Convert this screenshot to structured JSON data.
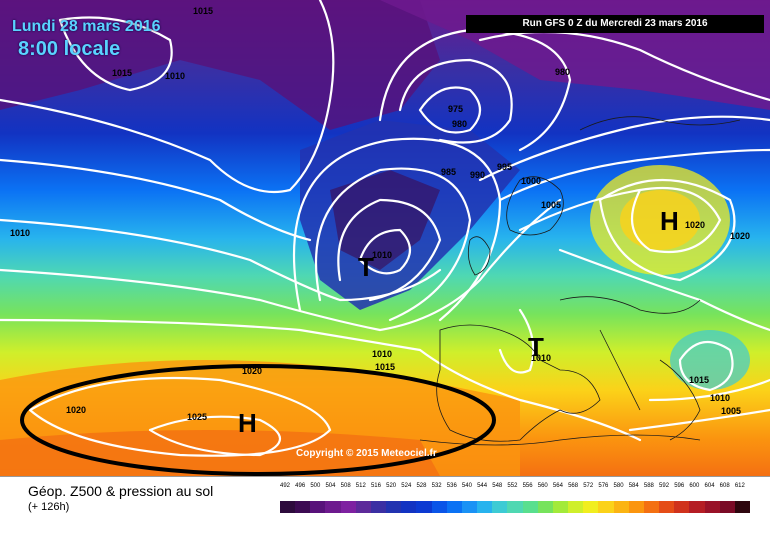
{
  "header": {
    "date_text": "Lundi 28 mars 2016",
    "time_text": "8:00 locale",
    "run_text": "Run GFS 0 Z du Mercredi 23 mars 2016"
  },
  "footer": {
    "title": "Géop. Z500 & pression au sol",
    "subtitle": "(+ 126h)"
  },
  "copyright": "Copyright © 2015 Meteociel.fr",
  "pressure_labels": [
    "1015",
    "1015",
    "1010",
    "980",
    "975",
    "980",
    "985",
    "990",
    "995",
    "1000",
    "1005",
    "1010",
    "1020",
    "1020",
    "1010",
    "1015",
    "1020",
    "1025",
    "1020",
    "1010",
    "1010",
    "1015",
    "1005",
    "1010"
  ],
  "centers": {
    "high_west": "H",
    "high_east": "H",
    "low_north": "T",
    "low_iberia": "T"
  },
  "legend": {
    "ticks": [
      "492",
      "496",
      "500",
      "504",
      "508",
      "512",
      "516",
      "520",
      "524",
      "528",
      "532",
      "536",
      "540",
      "544",
      "548",
      "552",
      "556",
      "560",
      "564",
      "568",
      "572",
      "576",
      "580",
      "584",
      "588",
      "592",
      "596",
      "600",
      "604",
      "608",
      "612"
    ],
    "colors": [
      "#2d0a3c",
      "#3c0a52",
      "#58127a",
      "#6d1a8e",
      "#7e21a1",
      "#5d2a9a",
      "#3b2fa3",
      "#2233b0",
      "#1233c2",
      "#0c3ad2",
      "#0a55e8",
      "#0b72f4",
      "#1a92f5",
      "#27b3ee",
      "#3dcbd4",
      "#4fd8b2",
      "#59df8e",
      "#77e35c",
      "#a3ea3a",
      "#cfef2b",
      "#f1ee1f",
      "#fbd219",
      "#fbb413",
      "#fb950f",
      "#f47012",
      "#e54d17",
      "#d0321c",
      "#b51d24",
      "#991228",
      "#7a0a26",
      "#2e060e"
    ]
  }
}
